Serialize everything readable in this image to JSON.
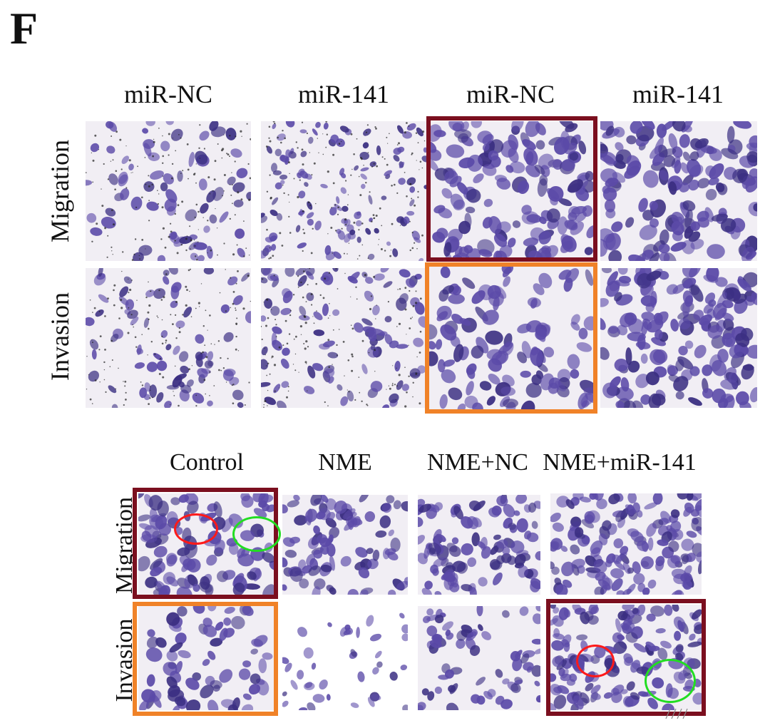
{
  "figure": {
    "panel_letter": "F",
    "top_grid": {
      "columns": [
        "miR-NC",
        "miR-141",
        "miR-NC",
        "miR-141"
      ],
      "rows": [
        "Migration",
        "Invasion"
      ]
    },
    "bottom_grid": {
      "columns": [
        "Control",
        "NME",
        "NME+NC",
        "NME+miR-141"
      ],
      "rows": [
        "Migration",
        "Invasion"
      ]
    },
    "colors": {
      "stain": "#5b4aa8",
      "stain_dark": "#3b2f82",
      "background": "#f1eef4",
      "frame_maroon": "#7b0f1f",
      "frame_orange": "#f08228",
      "circle_red": "#ff1a1a",
      "circle_green": "#22dd22"
    }
  }
}
